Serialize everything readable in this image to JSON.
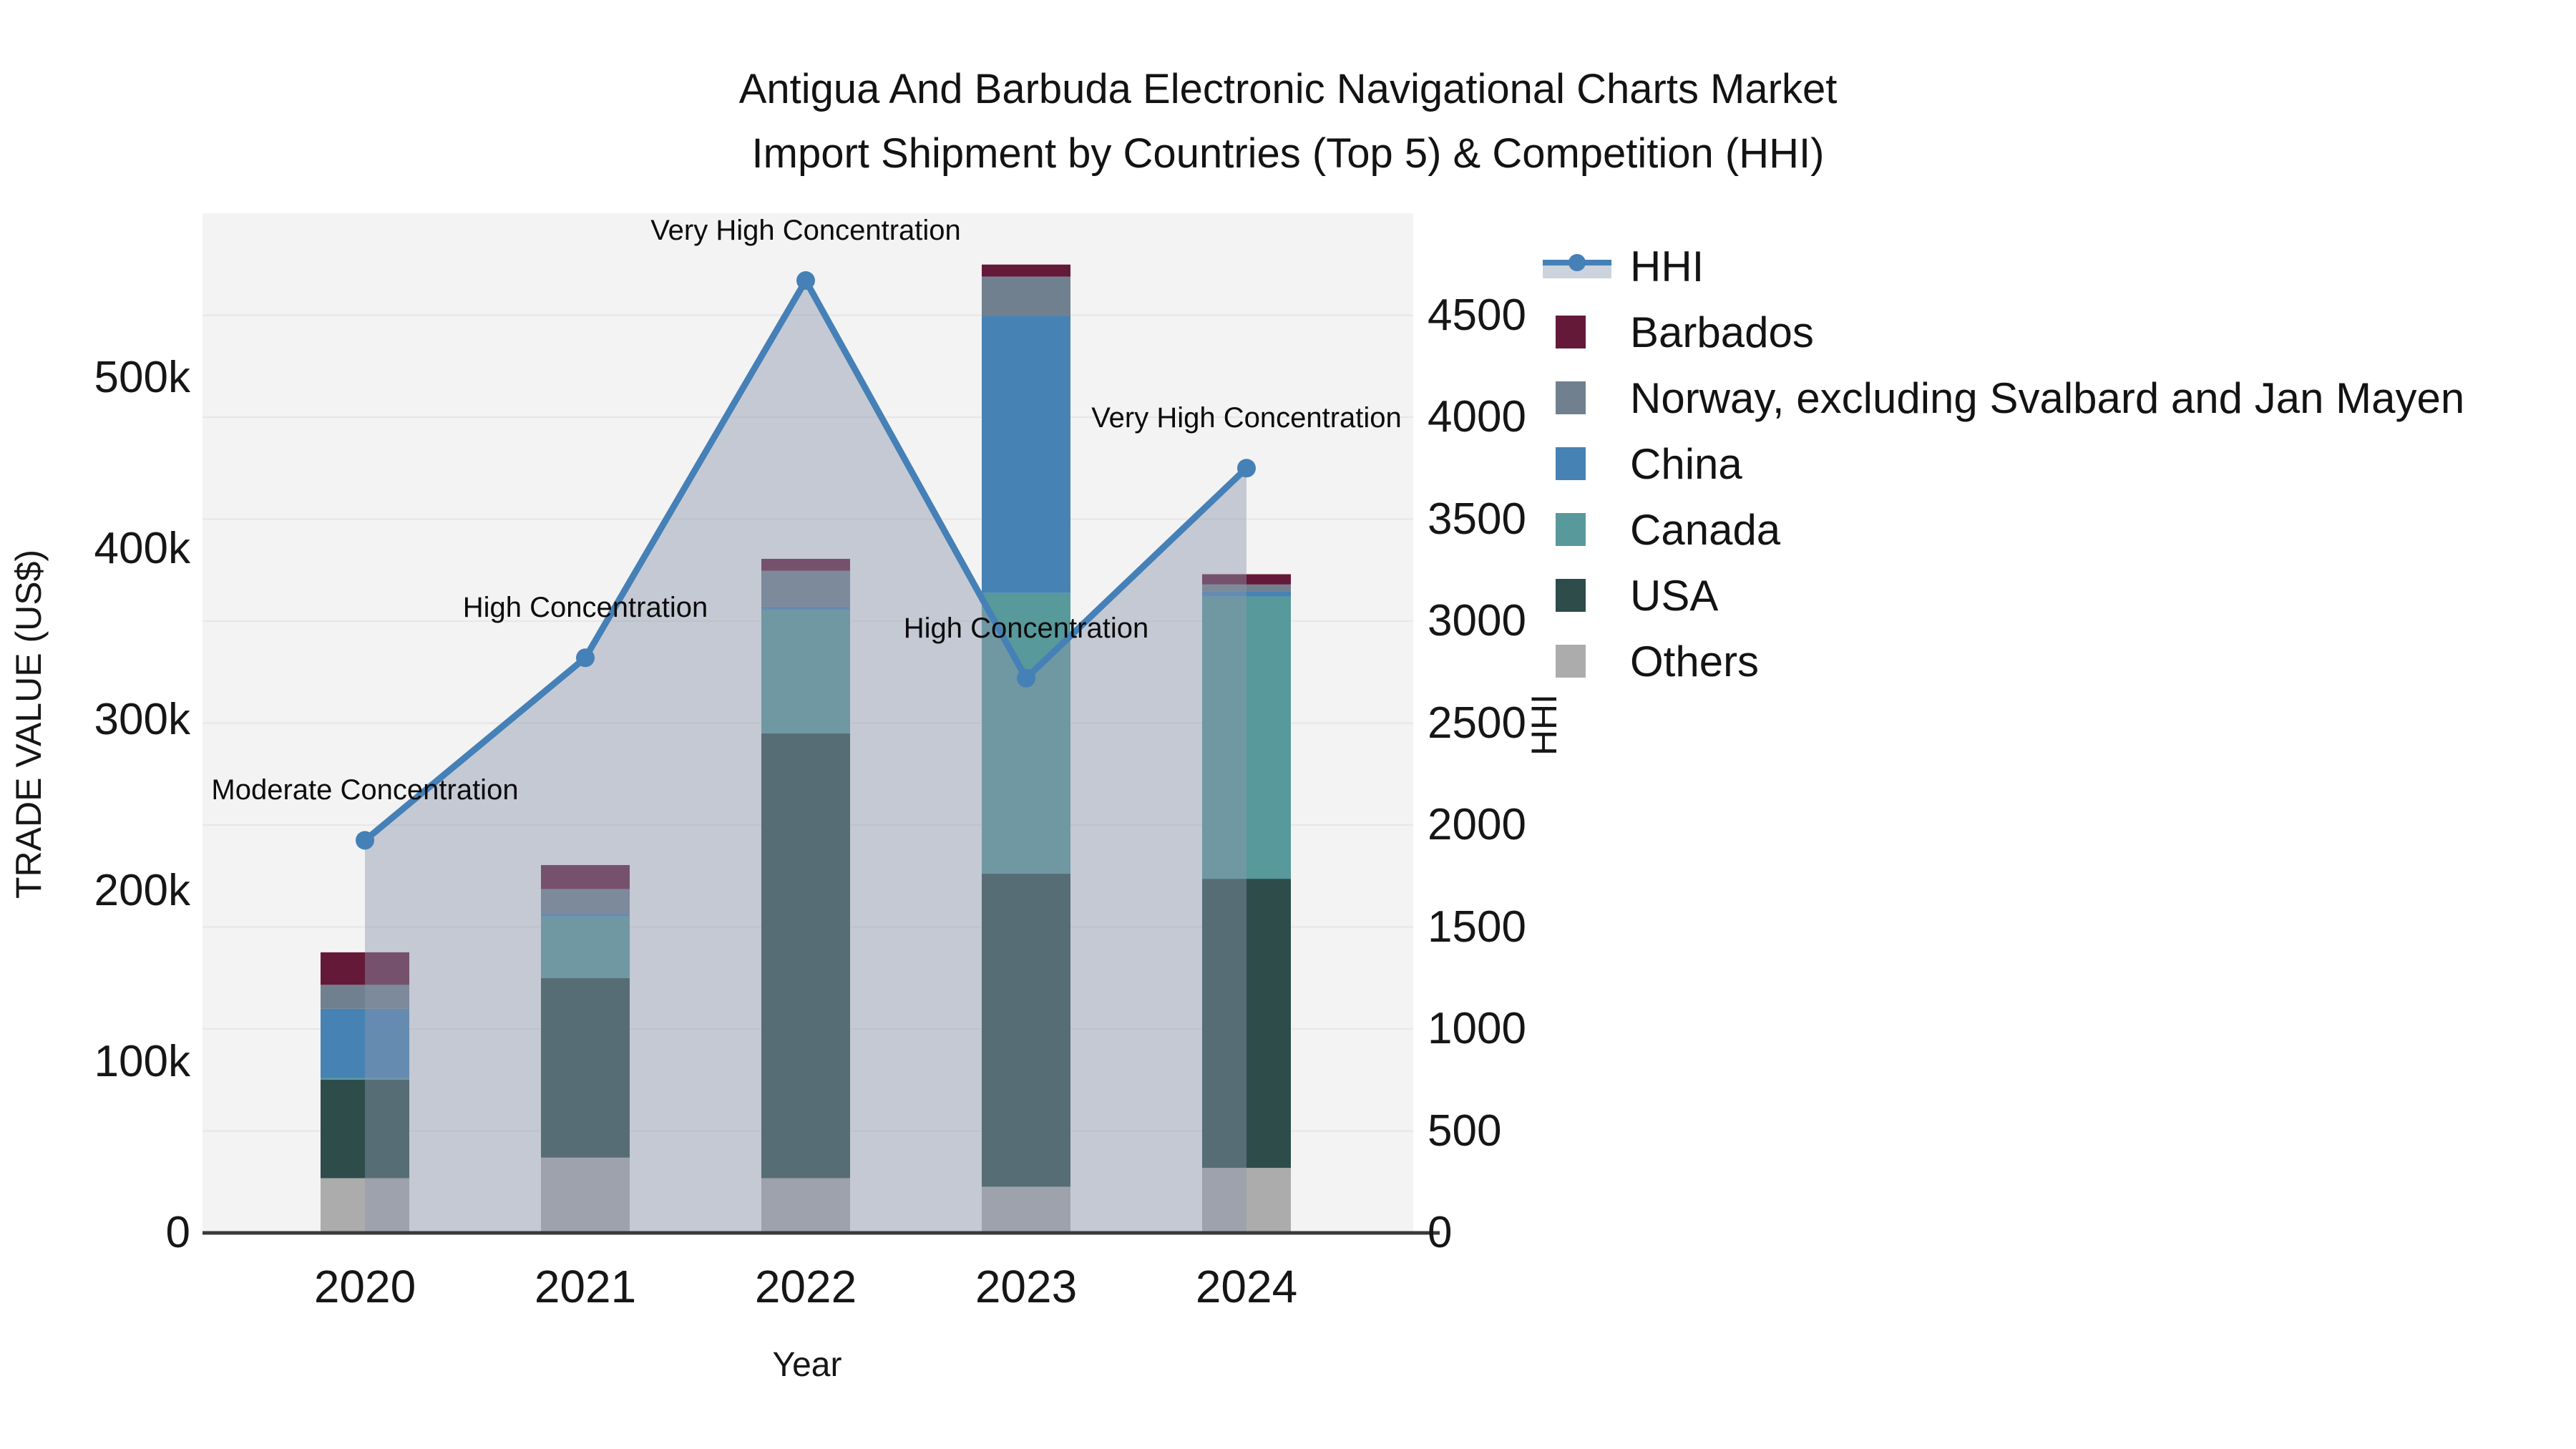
{
  "title": {
    "line1": "Antigua And Barbuda Electronic Navigational Charts Market",
    "line2": "Import Shipment by Countries (Top 5) & Competition (HHI)"
  },
  "axes": {
    "left": {
      "title": "TRADE VALUE (US$)",
      "tick_labels": [
        "0",
        "100k",
        "200k",
        "300k",
        "400k",
        "500k"
      ],
      "tick_values": [
        0,
        100000,
        200000,
        300000,
        400000,
        500000
      ]
    },
    "right": {
      "title": "HHI",
      "tick_labels": [
        "0",
        "500",
        "1000",
        "1500",
        "2000",
        "2500",
        "3000",
        "3500",
        "4000",
        "4500"
      ],
      "tick_values": [
        0,
        500,
        1000,
        1500,
        2000,
        2500,
        3000,
        3500,
        4000,
        4500
      ]
    },
    "x": {
      "title": "Year",
      "tick_labels": [
        "2020",
        "2021",
        "2022",
        "2023",
        "2024"
      ]
    }
  },
  "legend": {
    "items": [
      {
        "label": "HHI",
        "type": "line",
        "color": "#4580b7",
        "fill": "#ccd3dd"
      },
      {
        "label": "Barbados",
        "type": "swatch",
        "color": "#651939"
      },
      {
        "label": "Norway, excluding Svalbard and Jan Mayen",
        "type": "swatch",
        "color": "#71808f"
      },
      {
        "label": "China",
        "type": "swatch",
        "color": "#4682b4"
      },
      {
        "label": "Canada",
        "type": "swatch",
        "color": "#58999b"
      },
      {
        "label": "USA",
        "type": "swatch",
        "color": "#2d4c4a"
      },
      {
        "label": "Others",
        "type": "swatch",
        "color": "#acacac"
      }
    ]
  },
  "chart_data": {
    "type": "bar",
    "subtype": "stacked-bars-with-hhi-line",
    "categories": [
      2020,
      2021,
      2022,
      2023,
      2024
    ],
    "stack_order": "bottom-to-top",
    "series": [
      {
        "name": "Others",
        "color": "#acacac",
        "values": [
          32000,
          44000,
          32000,
          27000,
          38000
        ]
      },
      {
        "name": "USA",
        "color": "#2d4c4a",
        "values": [
          57500,
          105000,
          260000,
          183000,
          169000
        ]
      },
      {
        "name": "Canada",
        "color": "#58999b",
        "values": [
          1000,
          36000,
          72000,
          164000,
          165000
        ]
      },
      {
        "name": "China",
        "color": "#4682b4",
        "values": [
          40500,
          1500,
          2000,
          162000,
          3000
        ]
      },
      {
        "name": "Norway, excluding Svalbard and Jan Mayen",
        "color": "#71808f",
        "values": [
          14000,
          14500,
          21000,
          23000,
          4000
        ]
      },
      {
        "name": "Barbados",
        "color": "#651939",
        "values": [
          19000,
          14000,
          7000,
          7000,
          6000
        ]
      }
    ],
    "line_series": {
      "name": "HHI",
      "axis": "right",
      "color": "#4580b7",
      "area_fill": "rgba(139,150,173,0.45)",
      "values": [
        1925,
        2820,
        4670,
        2720,
        3750
      ]
    },
    "annotations": [
      {
        "category": 2020,
        "text": "Moderate Concentration"
      },
      {
        "category": 2021,
        "text": "High Concentration"
      },
      {
        "category": 2022,
        "text": "Very High Concentration"
      },
      {
        "category": 2023,
        "text": "High Concentration"
      },
      {
        "category": 2024,
        "text": "Very High Concentration"
      }
    ],
    "xlabel": "Year",
    "ylabel_left": "TRADE VALUE (US$)",
    "ylabel_right": "HHI",
    "ylim_left": [
      0,
      596000
    ],
    "ylim_right": [
      0,
      5000
    ],
    "grid": {
      "axis": "right",
      "step": 500,
      "color": "#e6e6e6"
    },
    "legend_position": "right",
    "plot_background": "#f3f3f3",
    "axis_line_color": "#3a3a3a"
  }
}
